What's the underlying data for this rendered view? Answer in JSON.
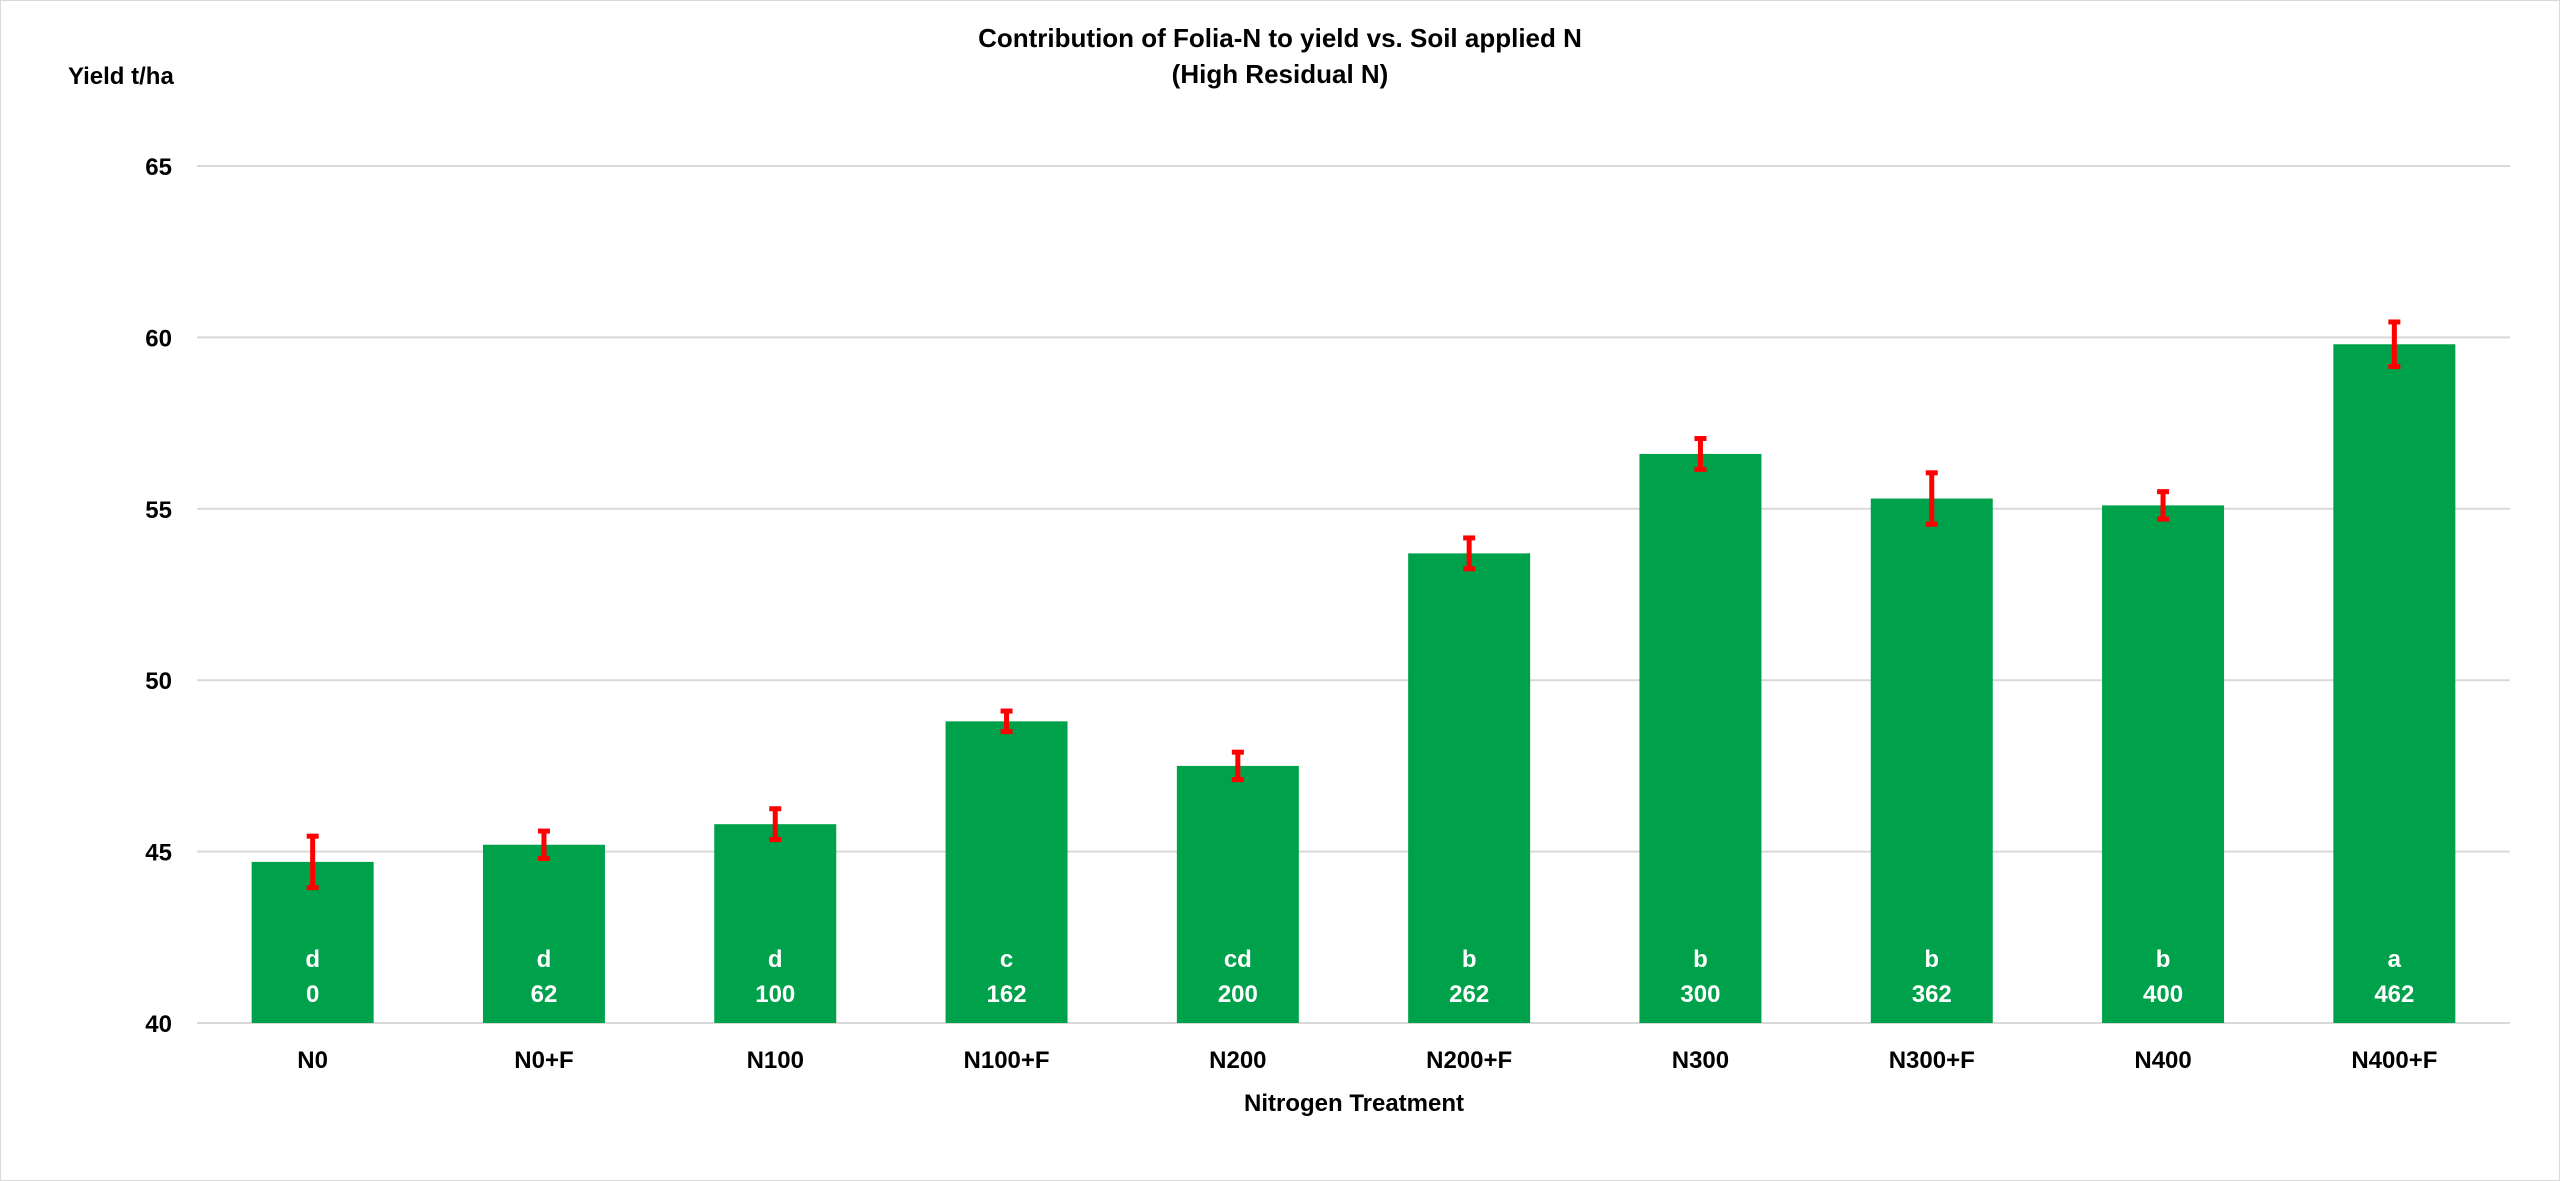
{
  "chart_data": {
    "type": "bar",
    "title": "Contribution of Folia-N to yield vs. Soil applied N",
    "subtitle": "(High Residual N)",
    "ylabel": "Yield t/ha",
    "xlabel": "Nitrogen Treatment",
    "ylim": [
      40,
      65
    ],
    "yticks": [
      40,
      45,
      50,
      55,
      60,
      65
    ],
    "grid": true,
    "categories": [
      "N0",
      "N0+F",
      "N100",
      "N100+F",
      "N200",
      "N200+F",
      "N300",
      "N300+F",
      "N400",
      "N400+F"
    ],
    "values": [
      44.7,
      45.2,
      45.8,
      48.8,
      47.5,
      53.7,
      56.6,
      55.3,
      55.1,
      59.8
    ],
    "error": [
      0.75,
      0.4,
      0.45,
      0.3,
      0.4,
      0.45,
      0.45,
      0.75,
      0.4,
      0.65
    ],
    "letters": [
      "d",
      "d",
      "d",
      "c",
      "cd",
      "b",
      "b",
      "b",
      "b",
      "a"
    ],
    "n_totals": [
      "0",
      "62",
      "100",
      "162",
      "200",
      "262",
      "300",
      "362",
      "400",
      "462"
    ],
    "bar_color": "#00A14B",
    "error_color": "#FF0000",
    "gridline_color": "#d9d9d9"
  }
}
